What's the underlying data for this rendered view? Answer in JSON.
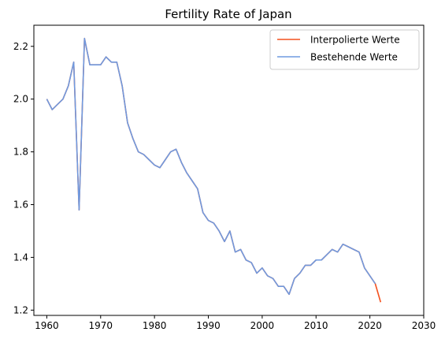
{
  "chart_data": {
    "type": "line",
    "title": "Fertility Rate of Japan",
    "xlabel": "",
    "ylabel": "",
    "xlim": [
      1957.6,
      2030
    ],
    "ylim": [
      1.18,
      2.28
    ],
    "x_ticks": [
      1960,
      1970,
      1980,
      1990,
      2000,
      2010,
      2020,
      2030
    ],
    "y_ticks": [
      1.2,
      1.4,
      1.6,
      1.8,
      2.0,
      2.2
    ],
    "y_tick_labels": [
      "1.2",
      "1.4",
      "1.6",
      "1.8",
      "2.0",
      "2.2"
    ],
    "grid": false,
    "legend_position": "top-right",
    "series": [
      {
        "name": "Interpolierte Werte",
        "color": "#f4511e",
        "x": [
          1960,
          1961,
          1962,
          1963,
          1964,
          1965,
          1966,
          1967,
          1968,
          1969,
          1970,
          1971,
          1972,
          1973,
          1974,
          1975,
          1976,
          1977,
          1978,
          1979,
          1980,
          1981,
          1982,
          1983,
          1984,
          1985,
          1986,
          1987,
          1988,
          1989,
          1990,
          1991,
          1992,
          1993,
          1994,
          1995,
          1996,
          1997,
          1998,
          1999,
          2000,
          2001,
          2002,
          2003,
          2004,
          2005,
          2006,
          2007,
          2008,
          2009,
          2010,
          2011,
          2012,
          2013,
          2014,
          2015,
          2016,
          2017,
          2018,
          2019,
          2020,
          2021,
          2022
        ],
        "values": [
          2.0,
          1.96,
          1.98,
          2.0,
          2.05,
          2.14,
          1.58,
          2.23,
          2.13,
          2.13,
          2.13,
          2.16,
          2.14,
          2.14,
          2.05,
          1.91,
          1.85,
          1.8,
          1.79,
          1.77,
          1.75,
          1.74,
          1.77,
          1.8,
          1.81,
          1.76,
          1.72,
          1.69,
          1.66,
          1.57,
          1.54,
          1.53,
          1.5,
          1.46,
          1.5,
          1.42,
          1.43,
          1.39,
          1.38,
          1.34,
          1.36,
          1.33,
          1.32,
          1.29,
          1.29,
          1.26,
          1.32,
          1.34,
          1.37,
          1.37,
          1.39,
          1.39,
          1.41,
          1.43,
          1.42,
          1.45,
          1.44,
          1.43,
          1.42,
          1.36,
          1.33,
          1.3,
          1.23
        ]
      },
      {
        "name": "Bestehende Werte",
        "color": "#6f9ae0",
        "x": [
          1960,
          1961,
          1962,
          1963,
          1964,
          1965,
          1966,
          1967,
          1968,
          1969,
          1970,
          1971,
          1972,
          1973,
          1974,
          1975,
          1976,
          1977,
          1978,
          1979,
          1980,
          1981,
          1982,
          1983,
          1984,
          1985,
          1986,
          1987,
          1988,
          1989,
          1990,
          1991,
          1992,
          1993,
          1994,
          1995,
          1996,
          1997,
          1998,
          1999,
          2000,
          2001,
          2002,
          2003,
          2004,
          2005,
          2006,
          2007,
          2008,
          2009,
          2010,
          2011,
          2012,
          2013,
          2014,
          2015,
          2016,
          2017,
          2018,
          2019,
          2020,
          2021
        ],
        "values": [
          2.0,
          1.96,
          1.98,
          2.0,
          2.05,
          2.14,
          1.58,
          2.23,
          2.13,
          2.13,
          2.13,
          2.16,
          2.14,
          2.14,
          2.05,
          1.91,
          1.85,
          1.8,
          1.79,
          1.77,
          1.75,
          1.74,
          1.77,
          1.8,
          1.81,
          1.76,
          1.72,
          1.69,
          1.66,
          1.57,
          1.54,
          1.53,
          1.5,
          1.46,
          1.5,
          1.42,
          1.43,
          1.39,
          1.38,
          1.34,
          1.36,
          1.33,
          1.32,
          1.29,
          1.29,
          1.26,
          1.32,
          1.34,
          1.37,
          1.37,
          1.39,
          1.39,
          1.41,
          1.43,
          1.42,
          1.45,
          1.44,
          1.43,
          1.42,
          1.36,
          1.33,
          1.3
        ]
      }
    ]
  }
}
